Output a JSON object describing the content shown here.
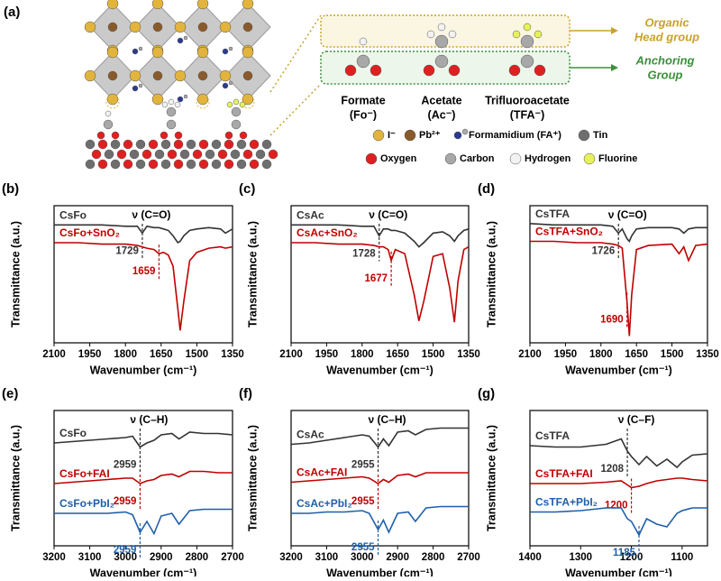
{
  "panel_a": {
    "label": "(a)",
    "head_group": [
      "Organic",
      "Head group"
    ],
    "anchoring_group": [
      "Anchoring",
      "Group"
    ],
    "molecules": [
      {
        "name": "Formate",
        "abbr": "(Fo⁻)"
      },
      {
        "name": "Acetate",
        "abbr": "(Ac⁻)"
      },
      {
        "name": "Trifluoroacetate",
        "abbr": "(TFA⁻)"
      }
    ],
    "legend": [
      "I⁻",
      "Pb²⁺",
      "Formamidium (FA⁺)",
      "Tin",
      "Oxygen",
      "Carbon",
      "Hydrogen",
      "Fluorine"
    ]
  },
  "chart_data": [
    {
      "type": "line",
      "panel": "(b)",
      "annotation": "ν (C=O)",
      "x_label": "Wavenumber (cm⁻¹)",
      "y_label": "Transmittance (a.u.)",
      "xlim": [
        2100,
        1350
      ],
      "xticks": [
        2100,
        1950,
        1800,
        1650,
        1500,
        1350
      ],
      "ylim": [
        0,
        10
      ],
      "x": [
        2100,
        2000,
        1900,
        1800,
        1750,
        1729,
        1710,
        1680,
        1659,
        1640,
        1620,
        1600,
        1580,
        1570,
        1555,
        1530,
        1500,
        1450,
        1400,
        1380,
        1350
      ],
      "series": [
        {
          "name": "CsFo",
          "color": "#333333",
          "peak": 1729,
          "values": [
            8.6,
            8.6,
            8.6,
            8.5,
            8.5,
            8.0,
            8.5,
            8.4,
            8.4,
            8.3,
            8.2,
            7.8,
            7.3,
            7.4,
            7.8,
            8.2,
            8.3,
            8.4,
            8.3,
            8.0,
            8.3
          ]
        },
        {
          "name": "CsFo+SnO₂",
          "color": "#c00000",
          "peak": 1659,
          "values": [
            7.3,
            7.3,
            7.2,
            7.2,
            7.1,
            7.0,
            6.9,
            6.8,
            6.5,
            6.6,
            6.4,
            5.6,
            2.5,
            0.9,
            3.0,
            6.0,
            6.6,
            6.9,
            7.0,
            6.9,
            7.0
          ]
        }
      ]
    },
    {
      "type": "line",
      "panel": "(c)",
      "annotation": "ν (C=O)",
      "x_label": "Wavenumber (cm⁻¹)",
      "y_label": "Transmittance (a.u.)",
      "xlim": [
        2100,
        1350
      ],
      "xticks": [
        2100,
        1950,
        1800,
        1650,
        1500,
        1350
      ],
      "ylim": [
        0,
        10
      ],
      "x": [
        2100,
        2000,
        1900,
        1800,
        1750,
        1728,
        1710,
        1690,
        1677,
        1660,
        1620,
        1580,
        1560,
        1540,
        1500,
        1460,
        1430,
        1410,
        1395,
        1370,
        1350
      ],
      "series": [
        {
          "name": "CsAc",
          "color": "#333333",
          "peak": 1728,
          "values": [
            8.6,
            8.6,
            8.6,
            8.5,
            8.5,
            7.8,
            8.3,
            8.3,
            8.2,
            8.2,
            8.0,
            7.4,
            7.0,
            7.3,
            8.0,
            8.1,
            7.8,
            7.4,
            7.8,
            8.2,
            8.3
          ]
        },
        {
          "name": "CsAc+SnO₂",
          "color": "#c00000",
          "peak": 1677,
          "values": [
            7.3,
            7.3,
            7.2,
            7.2,
            7.1,
            7.0,
            7.0,
            6.8,
            6.0,
            6.8,
            6.5,
            3.5,
            1.6,
            3.0,
            6.3,
            6.5,
            4.0,
            1.5,
            4.5,
            6.8,
            7.0
          ]
        }
      ]
    },
    {
      "type": "line",
      "panel": "(d)",
      "annotation": "ν (C=O)",
      "x_label": "Wavenumber (cm⁻¹)",
      "y_label": "Transmittance (a.u.)",
      "xlim": [
        2100,
        1350
      ],
      "xticks": [
        2100,
        1950,
        1800,
        1650,
        1500,
        1350
      ],
      "ylim": [
        0,
        10
      ],
      "x": [
        2100,
        2000,
        1900,
        1800,
        1750,
        1726,
        1710,
        1690,
        1680,
        1670,
        1650,
        1600,
        1500,
        1470,
        1450,
        1430,
        1400,
        1350
      ],
      "series": [
        {
          "name": "CsTFA",
          "color": "#333333",
          "peak": 1726,
          "values": [
            8.7,
            8.6,
            8.6,
            8.6,
            8.5,
            8.0,
            8.3,
            7.6,
            7.4,
            7.8,
            8.3,
            8.4,
            8.4,
            8.3,
            8.0,
            8.3,
            8.4,
            8.4
          ]
        },
        {
          "name": "CsTFA+SnO₂",
          "color": "#c00000",
          "peak": 1690,
          "values": [
            7.4,
            7.4,
            7.3,
            7.3,
            7.2,
            7.1,
            6.9,
            3.0,
            0.5,
            3.5,
            6.8,
            7.1,
            7.2,
            6.5,
            7.0,
            6.0,
            7.1,
            7.2
          ]
        }
      ]
    },
    {
      "type": "line",
      "panel": "(e)",
      "annotation": "ν (C–H)",
      "x_label": "Wavenumber (cm⁻¹)",
      "y_label": "Transmittance (a.u.)",
      "xlim": [
        3200,
        2700
      ],
      "xticks": [
        3200,
        3100,
        3000,
        2900,
        2800,
        2700
      ],
      "ylim": [
        0,
        10
      ],
      "x": [
        3200,
        3150,
        3100,
        3050,
        3000,
        2980,
        2959,
        2940,
        2920,
        2900,
        2870,
        2850,
        2820,
        2780,
        2740,
        2700
      ],
      "series": [
        {
          "name": "CsFo",
          "color": "#333333",
          "peak": 2959,
          "values": [
            7.6,
            7.7,
            7.8,
            7.9,
            8.0,
            8.1,
            7.3,
            7.6,
            7.8,
            8.2,
            8.3,
            7.9,
            8.4,
            8.3,
            8.3,
            8.2
          ]
        },
        {
          "name": "CsFo+FAI",
          "color": "#c00000",
          "peak": 2959,
          "values": [
            4.6,
            4.7,
            4.8,
            4.9,
            5.0,
            5.0,
            4.6,
            4.8,
            4.9,
            5.2,
            5.3,
            5.1,
            5.5,
            5.5,
            5.4,
            5.4
          ]
        },
        {
          "name": "CsFo+PbI₂",
          "color": "#1f5fa8",
          "peak": 2959,
          "values": [
            2.4,
            2.4,
            2.4,
            2.4,
            2.5,
            2.3,
            1.0,
            1.8,
            0.9,
            2.2,
            2.4,
            1.6,
            2.6,
            2.7,
            2.7,
            2.7
          ]
        }
      ]
    },
    {
      "type": "line",
      "panel": "(f)",
      "annotation": "ν (C–H)",
      "x_label": "Wavenumber (cm⁻¹)",
      "y_label": "Transmittance (a.u.)",
      "xlim": [
        3200,
        2700
      ],
      "xticks": [
        3200,
        3100,
        3000,
        2900,
        2800,
        2700
      ],
      "ylim": [
        0,
        10
      ],
      "x": [
        3200,
        3150,
        3100,
        3050,
        3000,
        2980,
        2955,
        2940,
        2925,
        2900,
        2870,
        2850,
        2820,
        2780,
        2740,
        2700
      ],
      "series": [
        {
          "name": "CsAc",
          "color": "#333333",
          "peak": 2955,
          "values": [
            7.5,
            7.6,
            7.8,
            8.0,
            8.2,
            8.1,
            7.3,
            7.9,
            7.4,
            8.4,
            8.5,
            8.2,
            8.6,
            8.7,
            8.7,
            8.7
          ]
        },
        {
          "name": "CsAc+FAI",
          "color": "#c00000",
          "peak": 2955,
          "values": [
            4.7,
            4.8,
            4.9,
            5.0,
            5.1,
            5.0,
            4.6,
            4.9,
            4.7,
            5.2,
            5.3,
            5.1,
            5.4,
            5.4,
            5.4,
            5.4
          ]
        },
        {
          "name": "CsAc+PbI₂",
          "color": "#1f5fa8",
          "peak": 2955,
          "values": [
            2.4,
            2.4,
            2.5,
            2.5,
            2.6,
            2.4,
            1.2,
            1.9,
            1.0,
            2.4,
            2.5,
            1.8,
            2.8,
            2.9,
            2.9,
            2.9
          ]
        }
      ]
    },
    {
      "type": "line",
      "panel": "(g)",
      "annotation": "ν (C–F)",
      "x_label": "Wavenumber (cm⁻¹)",
      "y_label": "Transmittance (a.u.)",
      "xlim": [
        1400,
        1050
      ],
      "xticks": [
        1400,
        1300,
        1200,
        1100
      ],
      "ylim": [
        0,
        10
      ],
      "x": [
        1400,
        1350,
        1300,
        1250,
        1220,
        1208,
        1200,
        1185,
        1170,
        1150,
        1130,
        1110,
        1100,
        1080,
        1050
      ],
      "series": [
        {
          "name": "CsTFA",
          "color": "#333333",
          "peak": 1208,
          "values": [
            7.4,
            7.3,
            7.3,
            7.5,
            7.9,
            7.0,
            6.6,
            6.0,
            6.6,
            5.9,
            6.4,
            5.8,
            6.2,
            6.7,
            6.8
          ]
        },
        {
          "name": "CsTFA+FAI",
          "color": "#c00000",
          "peak": 1200,
          "values": [
            4.6,
            4.6,
            4.6,
            4.7,
            4.8,
            4.5,
            4.3,
            4.4,
            4.6,
            4.8,
            4.9,
            5.0,
            5.0,
            4.9,
            4.8
          ]
        },
        {
          "name": "CsTFA+PbI₂",
          "color": "#1f5fa8",
          "peak": 1185,
          "values": [
            2.5,
            2.5,
            2.6,
            2.8,
            2.8,
            2.0,
            1.8,
            0.8,
            2.0,
            1.6,
            1.4,
            2.4,
            2.6,
            2.8,
            2.8
          ]
        }
      ]
    }
  ]
}
